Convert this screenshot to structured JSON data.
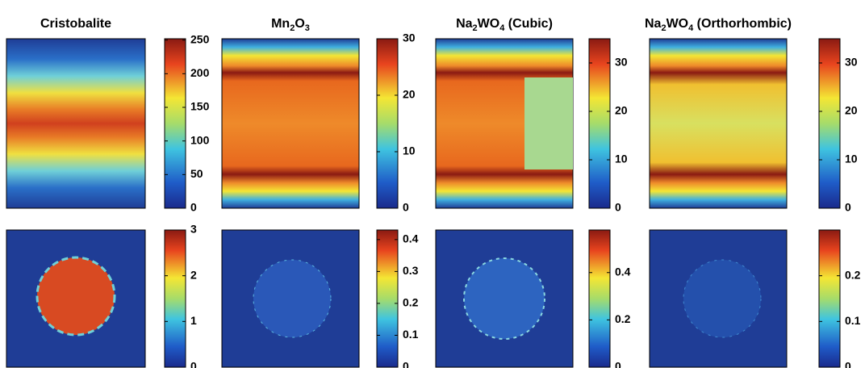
{
  "panels": [
    {
      "title": [
        {
          "text": "Cristobalite"
        }
      ],
      "top": {
        "clim": [
          0,
          252
        ],
        "ticks": [
          0,
          50,
          100,
          150,
          200,
          250
        ]
      },
      "bottom": {
        "clim": [
          0,
          3
        ],
        "ticks": [
          0,
          1,
          2,
          3
        ]
      }
    },
    {
      "title": [
        {
          "text": "Mn"
        },
        {
          "text": "2",
          "sub": true
        },
        {
          "text": "O"
        },
        {
          "text": "3",
          "sub": true
        }
      ],
      "top": {
        "clim": [
          0,
          30
        ],
        "ticks": [
          0,
          10,
          20,
          30
        ]
      },
      "bottom": {
        "clim": [
          0,
          0.43
        ],
        "ticks": [
          0,
          0.1,
          0.2,
          0.3,
          0.4
        ]
      }
    },
    {
      "title": [
        {
          "text": "Na"
        },
        {
          "text": "2",
          "sub": true
        },
        {
          "text": "WO"
        },
        {
          "text": "4",
          "sub": true
        },
        {
          "text": " (Cubic)"
        }
      ],
      "top": {
        "clim": [
          0,
          35
        ],
        "ticks": [
          0,
          10,
          20,
          30
        ]
      },
      "bottom": {
        "clim": [
          0,
          0.58
        ],
        "ticks": [
          0,
          0.2,
          0.4
        ]
      }
    },
    {
      "title": [
        {
          "text": "Na"
        },
        {
          "text": "2",
          "sub": true
        },
        {
          "text": "WO"
        },
        {
          "text": "4",
          "sub": true
        },
        {
          "text": " (Orthorhombic)"
        }
      ],
      "top": {
        "clim": [
          0,
          35
        ],
        "ticks": [
          0,
          10,
          20,
          30
        ]
      },
      "bottom": {
        "clim": [
          0,
          0.3
        ],
        "ticks": [
          0,
          0.1,
          0.2
        ]
      }
    }
  ]
}
